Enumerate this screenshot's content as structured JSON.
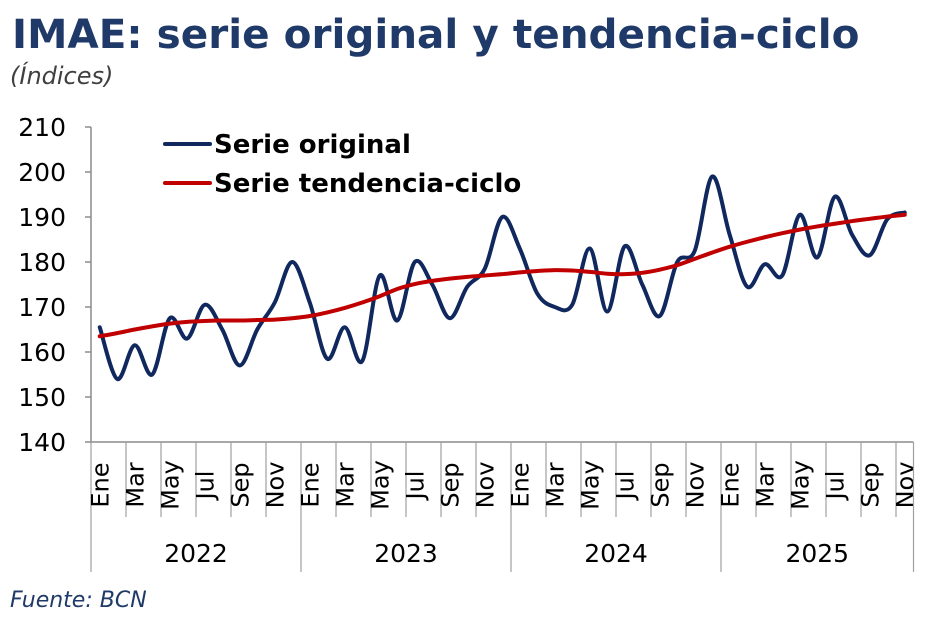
{
  "colors": {
    "title": "#1f3a68",
    "source": "#1f3a68"
  },
  "chart_data": {
    "type": "line",
    "title": "IMAE: serie original y tendencia-ciclo",
    "subtitle": "(Índices)",
    "source": "Fuente: BCN",
    "ylim": [
      140,
      210
    ],
    "yticks": [
      140,
      150,
      160,
      170,
      180,
      190,
      200,
      210
    ],
    "grid": false,
    "smooth": true,
    "legend": "top-left",
    "x_groups": [
      {
        "label": "2022",
        "tick_labels": [
          "Ene",
          "Mar",
          "May",
          "Jul",
          "Sep",
          "Nov"
        ]
      },
      {
        "label": "2023",
        "tick_labels": [
          "Ene",
          "Mar",
          "May",
          "Jul",
          "Sep",
          "Nov"
        ]
      },
      {
        "label": "2024",
        "tick_labels": [
          "Ene",
          "Mar",
          "May",
          "Jul",
          "Sep",
          "Nov"
        ]
      },
      {
        "label": "2025",
        "tick_labels": [
          "Ene",
          "Mar",
          "May",
          "Jul",
          "Sep",
          "Nov"
        ]
      }
    ],
    "series": [
      {
        "name": "Serie original",
        "color": "#10285e",
        "values": [
          [
            165.5,
            154.0,
            161.5,
            155.0,
            167.5,
            163.0,
            170.5,
            165.0,
            157.0,
            165.0,
            171.0,
            180.0
          ],
          [
            171.0,
            158.5,
            165.5,
            158.0,
            177.0,
            167.0,
            180.0,
            175.0,
            167.5,
            174.5,
            178.5,
            190.0
          ],
          [
            183.0,
            173.0,
            170.0,
            170.5,
            183.0,
            169.0,
            183.5,
            175.0,
            168.0,
            180.0,
            182.5,
            199.0
          ],
          [
            186.0,
            174.5,
            179.5,
            177.0,
            190.5,
            181.0,
            194.5,
            186.0,
            181.5,
            189.5,
            191.0
          ]
        ]
      },
      {
        "name": "Serie tendencia-ciclo",
        "color": "#c00000",
        "values": [
          [
            163.5,
            164.2,
            165.0,
            165.7,
            166.3,
            166.7,
            166.9,
            167.0,
            167.0,
            167.1,
            167.2,
            167.5
          ],
          [
            168.0,
            168.8,
            169.8,
            171.0,
            172.4,
            174.0,
            175.1,
            175.8,
            176.3,
            176.7,
            177.0,
            177.3
          ],
          [
            177.7,
            178.0,
            178.2,
            178.1,
            177.8,
            177.4,
            177.3,
            177.6,
            178.3,
            179.3,
            180.7,
            182.1
          ],
          [
            183.4,
            184.5,
            185.5,
            186.4,
            187.2,
            187.9,
            188.5,
            189.1,
            189.6,
            190.1,
            190.5
          ]
        ]
      }
    ]
  }
}
